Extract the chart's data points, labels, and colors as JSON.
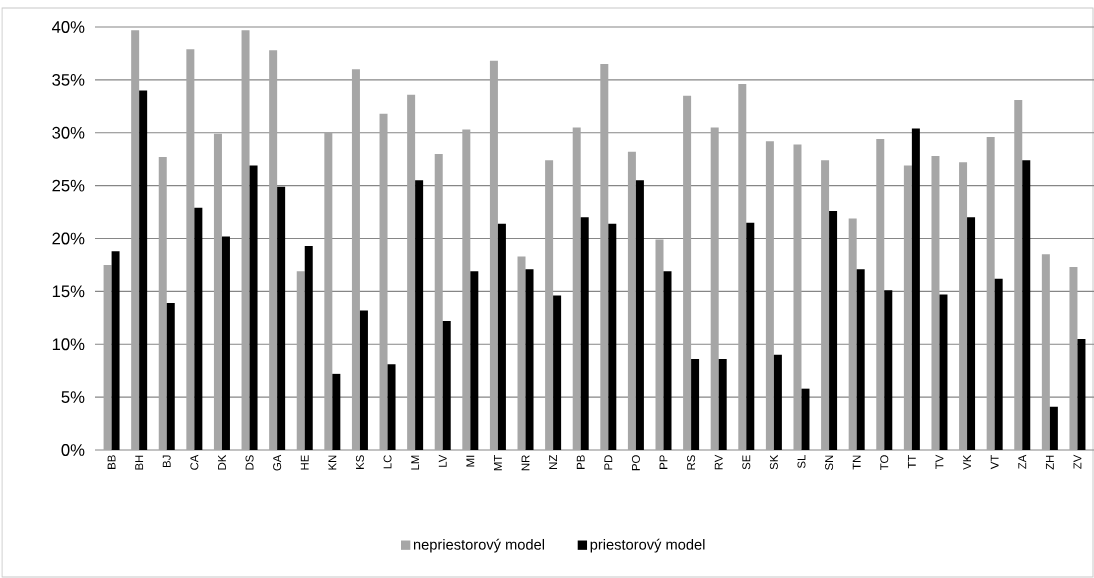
{
  "chart_data": {
    "type": "bar",
    "categories": [
      "BB",
      "BH",
      "BJ",
      "CA",
      "DK",
      "DS",
      "GA",
      "HE",
      "KN",
      "KS",
      "LC",
      "LM",
      "LV",
      "MI",
      "MT",
      "NR",
      "NZ",
      "PB",
      "PD",
      "PO",
      "PP",
      "RS",
      "RV",
      "SE",
      "SK",
      "SL",
      "SN",
      "TN",
      "TO",
      "TT",
      "TV",
      "VK",
      "VT",
      "ZA",
      "ZH",
      "ZV"
    ],
    "series": [
      {
        "name": "nepriestorový model",
        "color": "#a6a6a6",
        "values": [
          17.5,
          39.7,
          27.7,
          37.9,
          29.9,
          39.7,
          37.8,
          16.9,
          30.0,
          36.0,
          31.8,
          33.6,
          28.0,
          30.3,
          36.8,
          18.3,
          27.4,
          30.5,
          36.5,
          28.2,
          19.9,
          33.5,
          30.5,
          34.6,
          29.2,
          28.9,
          27.4,
          21.9,
          29.4,
          26.9,
          27.8,
          27.2,
          29.6,
          33.1,
          18.5,
          17.3
        ]
      },
      {
        "name": "priestorový model",
        "color": "#000000",
        "values": [
          18.8,
          34.0,
          13.9,
          22.9,
          20.2,
          26.9,
          24.9,
          19.3,
          7.2,
          13.2,
          8.1,
          25.5,
          12.2,
          16.9,
          21.4,
          17.1,
          14.6,
          22.0,
          21.4,
          25.5,
          16.9,
          8.6,
          8.6,
          21.5,
          9.0,
          5.8,
          22.6,
          17.1,
          15.1,
          30.4,
          14.7,
          22.0,
          16.2,
          27.4,
          4.1,
          10.5
        ]
      }
    ],
    "ylim": [
      0,
      40
    ],
    "yticks": [
      {
        "value": 0,
        "label": "0%"
      },
      {
        "value": 5,
        "label": "5%"
      },
      {
        "value": 10,
        "label": "10%"
      },
      {
        "value": 15,
        "label": "15%"
      },
      {
        "value": 20,
        "label": "20%"
      },
      {
        "value": 25,
        "label": "25%"
      },
      {
        "value": 30,
        "label": "30%"
      },
      {
        "value": 35,
        "label": "35%"
      },
      {
        "value": 40,
        "label": "40%"
      }
    ],
    "grid": "y",
    "legend": "bottom"
  }
}
